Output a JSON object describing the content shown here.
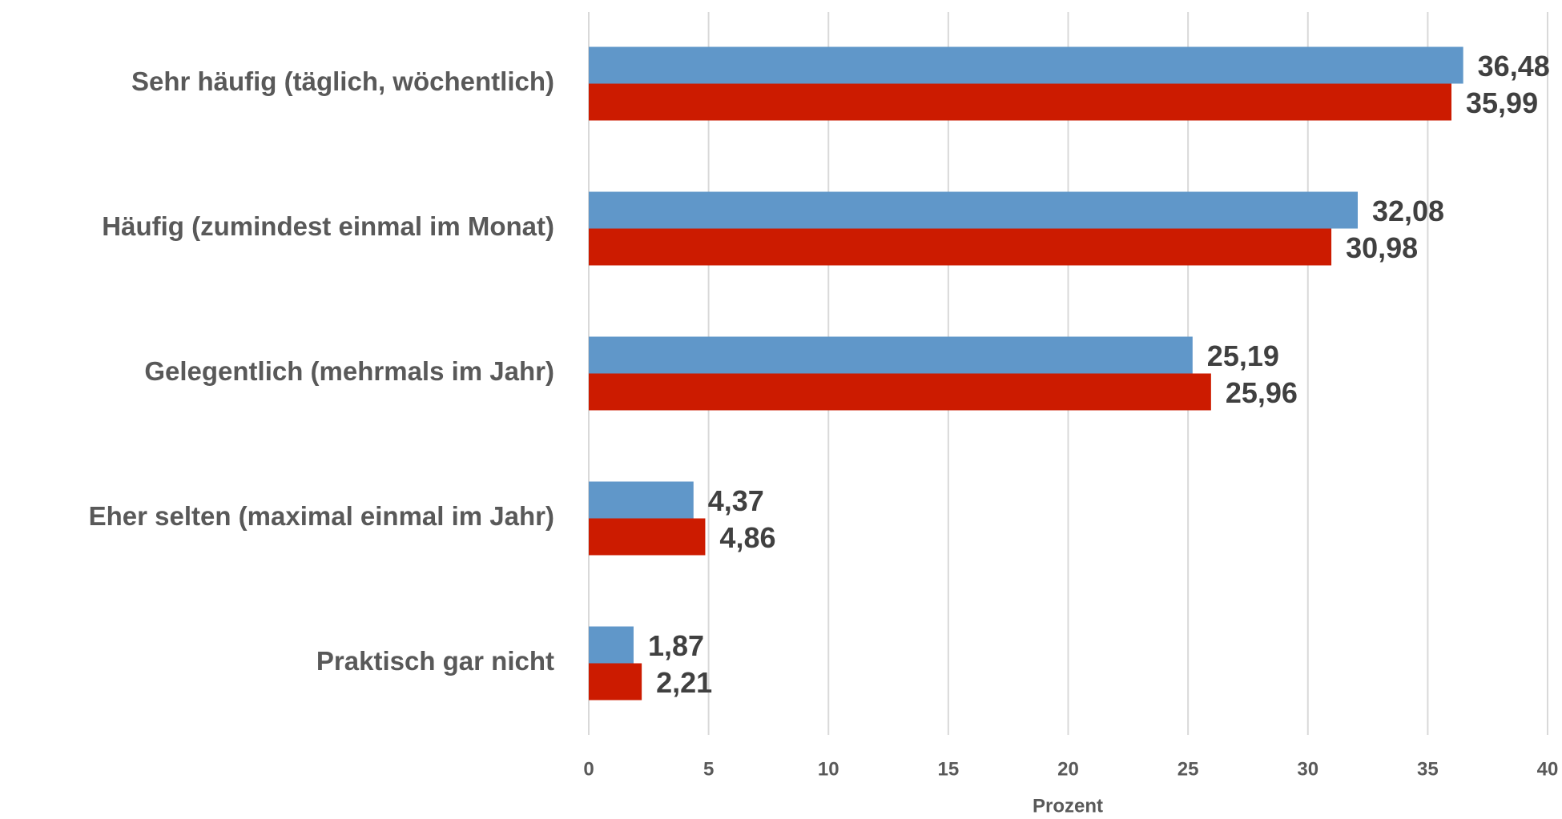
{
  "chart_data": {
    "type": "barh",
    "categories": [
      "Sehr häufig (täglich, wöchentlich)",
      "Häufig (zumindest einmal im Monat)",
      "Gelegentlich (mehrmals im Jahr)",
      "Eher selten (maximal einmal im Jahr)",
      "Praktisch gar nicht"
    ],
    "series": [
      {
        "color": "#6097c9",
        "values": [
          36.48,
          32.08,
          25.19,
          4.37,
          1.87
        ],
        "value_labels": [
          "36,48",
          "32,08",
          "25,19",
          "4,37",
          "1,87"
        ]
      },
      {
        "color": "#cc1b00",
        "values": [
          35.99,
          30.98,
          25.96,
          4.86,
          2.21
        ],
        "value_labels": [
          "35,99",
          "30,98",
          "25,96",
          "4,86",
          "2,21"
        ]
      }
    ],
    "xlabel": "Prozent",
    "xlim": [
      0,
      40
    ],
    "xticks": [
      0,
      5,
      10,
      15,
      20,
      25,
      30,
      35,
      40
    ],
    "grid": true
  }
}
